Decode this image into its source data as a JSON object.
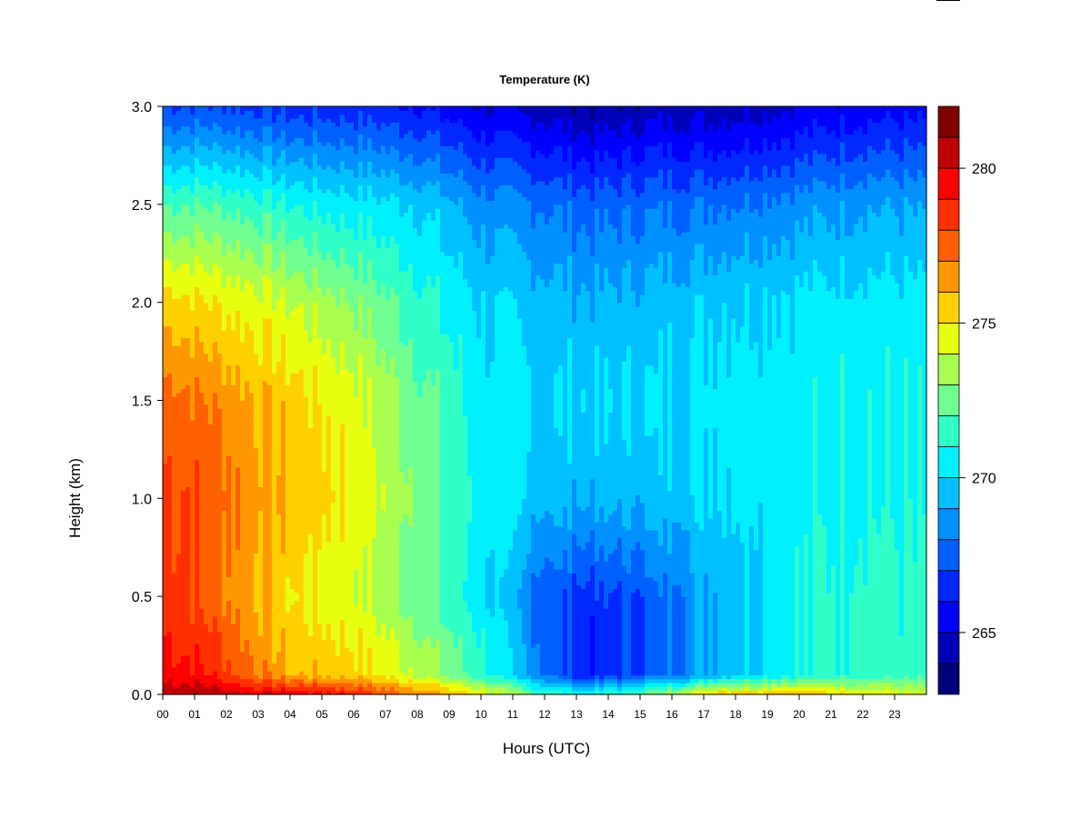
{
  "chart_data": {
    "type": "heatmap",
    "title": "Temperature (K)",
    "xlabel": "Hours (UTC)",
    "ylabel": "Height (km)",
    "xlim": [
      0,
      24
    ],
    "ylim": [
      0,
      3
    ],
    "x_tick_labels": [
      "00",
      "01",
      "02",
      "03",
      "04",
      "05",
      "06",
      "07",
      "08",
      "09",
      "10",
      "11",
      "12",
      "13",
      "14",
      "15",
      "16",
      "17",
      "18",
      "19",
      "20",
      "21",
      "22",
      "23"
    ],
    "y_tick_labels": [
      "0.0",
      "0.5",
      "1.0",
      "1.5",
      "2.0",
      "2.5",
      "3.0"
    ],
    "y_ticks": [
      0.0,
      0.5,
      1.0,
      1.5,
      2.0,
      2.5,
      3.0
    ],
    "colorbar": {
      "range": [
        263,
        282
      ],
      "ticks": [
        265,
        270,
        275,
        280
      ],
      "tick_labels": [
        "265",
        "270",
        "275",
        "280"
      ],
      "levels": [
        263,
        264,
        265,
        266,
        267,
        268,
        269,
        270,
        271,
        272,
        273,
        274,
        275,
        276,
        277,
        278,
        279,
        280,
        281,
        282
      ],
      "colors": [
        "#00007a",
        "#0000b8",
        "#0000ff",
        "#0028ff",
        "#0060ff",
        "#0090ff",
        "#00c0ff",
        "#00f0ff",
        "#30ffc8",
        "#70ff90",
        "#a8ff50",
        "#e8ff10",
        "#ffd000",
        "#ff9800",
        "#ff6000",
        "#ff3000",
        "#ff0000",
        "#c00000",
        "#800000"
      ]
    },
    "profiles": [
      {
        "hour": 0.2,
        "heights": [
          0.0,
          0.1,
          0.5,
          1.0,
          1.5,
          2.0,
          2.5,
          3.0
        ],
        "values": [
          281,
          279.5,
          278.5,
          278.3,
          277.5,
          275.5,
          272,
          267
        ]
      },
      {
        "hour": 1.5,
        "heights": [
          0.0,
          0.1,
          0.5,
          1.0,
          1.5,
          2.0,
          2.5,
          3.0
        ],
        "values": [
          281,
          279,
          277.5,
          277.8,
          277,
          275,
          272,
          267
        ]
      },
      {
        "hour": 3.0,
        "heights": [
          0.0,
          0.1,
          0.5,
          1.0,
          1.5,
          2.0,
          2.5,
          3.0
        ],
        "values": [
          280,
          277,
          276,
          276.5,
          276,
          274.5,
          271.5,
          266.8
        ]
      },
      {
        "hour": 4.0,
        "heights": [
          0.0,
          0.1,
          0.5,
          1.0,
          1.5,
          2.0,
          2.5,
          3.0
        ],
        "values": [
          280,
          276,
          275,
          276,
          275.5,
          274,
          271,
          266.5
        ]
      },
      {
        "hour": 6.0,
        "heights": [
          0.0,
          0.1,
          0.5,
          1.0,
          1.5,
          2.0,
          2.5,
          3.0
        ],
        "values": [
          279,
          275.5,
          274.3,
          274.8,
          274.5,
          273,
          270.5,
          266.5
        ]
      },
      {
        "hour": 8.0,
        "heights": [
          0.0,
          0.1,
          0.5,
          1.0,
          1.5,
          2.0,
          2.5,
          3.0
        ],
        "values": [
          277,
          274,
          272.5,
          273,
          272.5,
          271.5,
          270,
          266
        ]
      },
      {
        "hour": 10.0,
        "heights": [
          0.0,
          0.1,
          0.5,
          1.0,
          1.5,
          2.0,
          2.5,
          3.0
        ],
        "values": [
          275,
          271.5,
          270.5,
          270.7,
          270.5,
          270,
          268.5,
          265
        ]
      },
      {
        "hour": 12.0,
        "heights": [
          0.0,
          0.1,
          0.5,
          1.0,
          1.5,
          2.0,
          2.5,
          3.0
        ],
        "values": [
          272,
          268,
          267.5,
          269.5,
          270,
          269.5,
          268,
          264.5
        ]
      },
      {
        "hour": 13.5,
        "heights": [
          0.0,
          0.1,
          0.5,
          1.0,
          1.5,
          2.0,
          2.5,
          3.0
        ],
        "values": [
          271,
          266,
          266.5,
          269.2,
          270,
          269.2,
          267.5,
          264
        ]
      },
      {
        "hour": 15.5,
        "heights": [
          0.0,
          0.1,
          0.5,
          1.0,
          1.5,
          2.0,
          2.5,
          3.0
        ],
        "values": [
          273,
          267.5,
          267.5,
          269.5,
          270,
          269.5,
          267.8,
          264.5
        ]
      },
      {
        "hour": 17.5,
        "heights": [
          0.0,
          0.1,
          0.5,
          1.0,
          1.5,
          2.0,
          2.5,
          3.0
        ],
        "values": [
          276,
          269.5,
          269.5,
          270.3,
          270.5,
          270,
          268,
          264.5
        ]
      },
      {
        "hour": 20.0,
        "heights": [
          0.0,
          0.1,
          0.5,
          1.0,
          1.5,
          2.0,
          2.5,
          3.0
        ],
        "values": [
          276,
          271,
          271,
          270.6,
          270.6,
          270.3,
          268.5,
          265
        ]
      },
      {
        "hour": 22.0,
        "heights": [
          0.0,
          0.1,
          0.5,
          1.0,
          1.5,
          2.0,
          2.5,
          3.0
        ],
        "values": [
          275,
          271.5,
          271.5,
          271,
          271,
          270.5,
          269,
          265.5
        ]
      },
      {
        "hour": 24.0,
        "heights": [
          0.0,
          0.1,
          0.5,
          1.0,
          1.5,
          2.0,
          2.5,
          3.0
        ],
        "values": [
          274,
          271.5,
          271,
          270.8,
          270.8,
          270.3,
          268.8,
          265.5
        ]
      }
    ]
  }
}
